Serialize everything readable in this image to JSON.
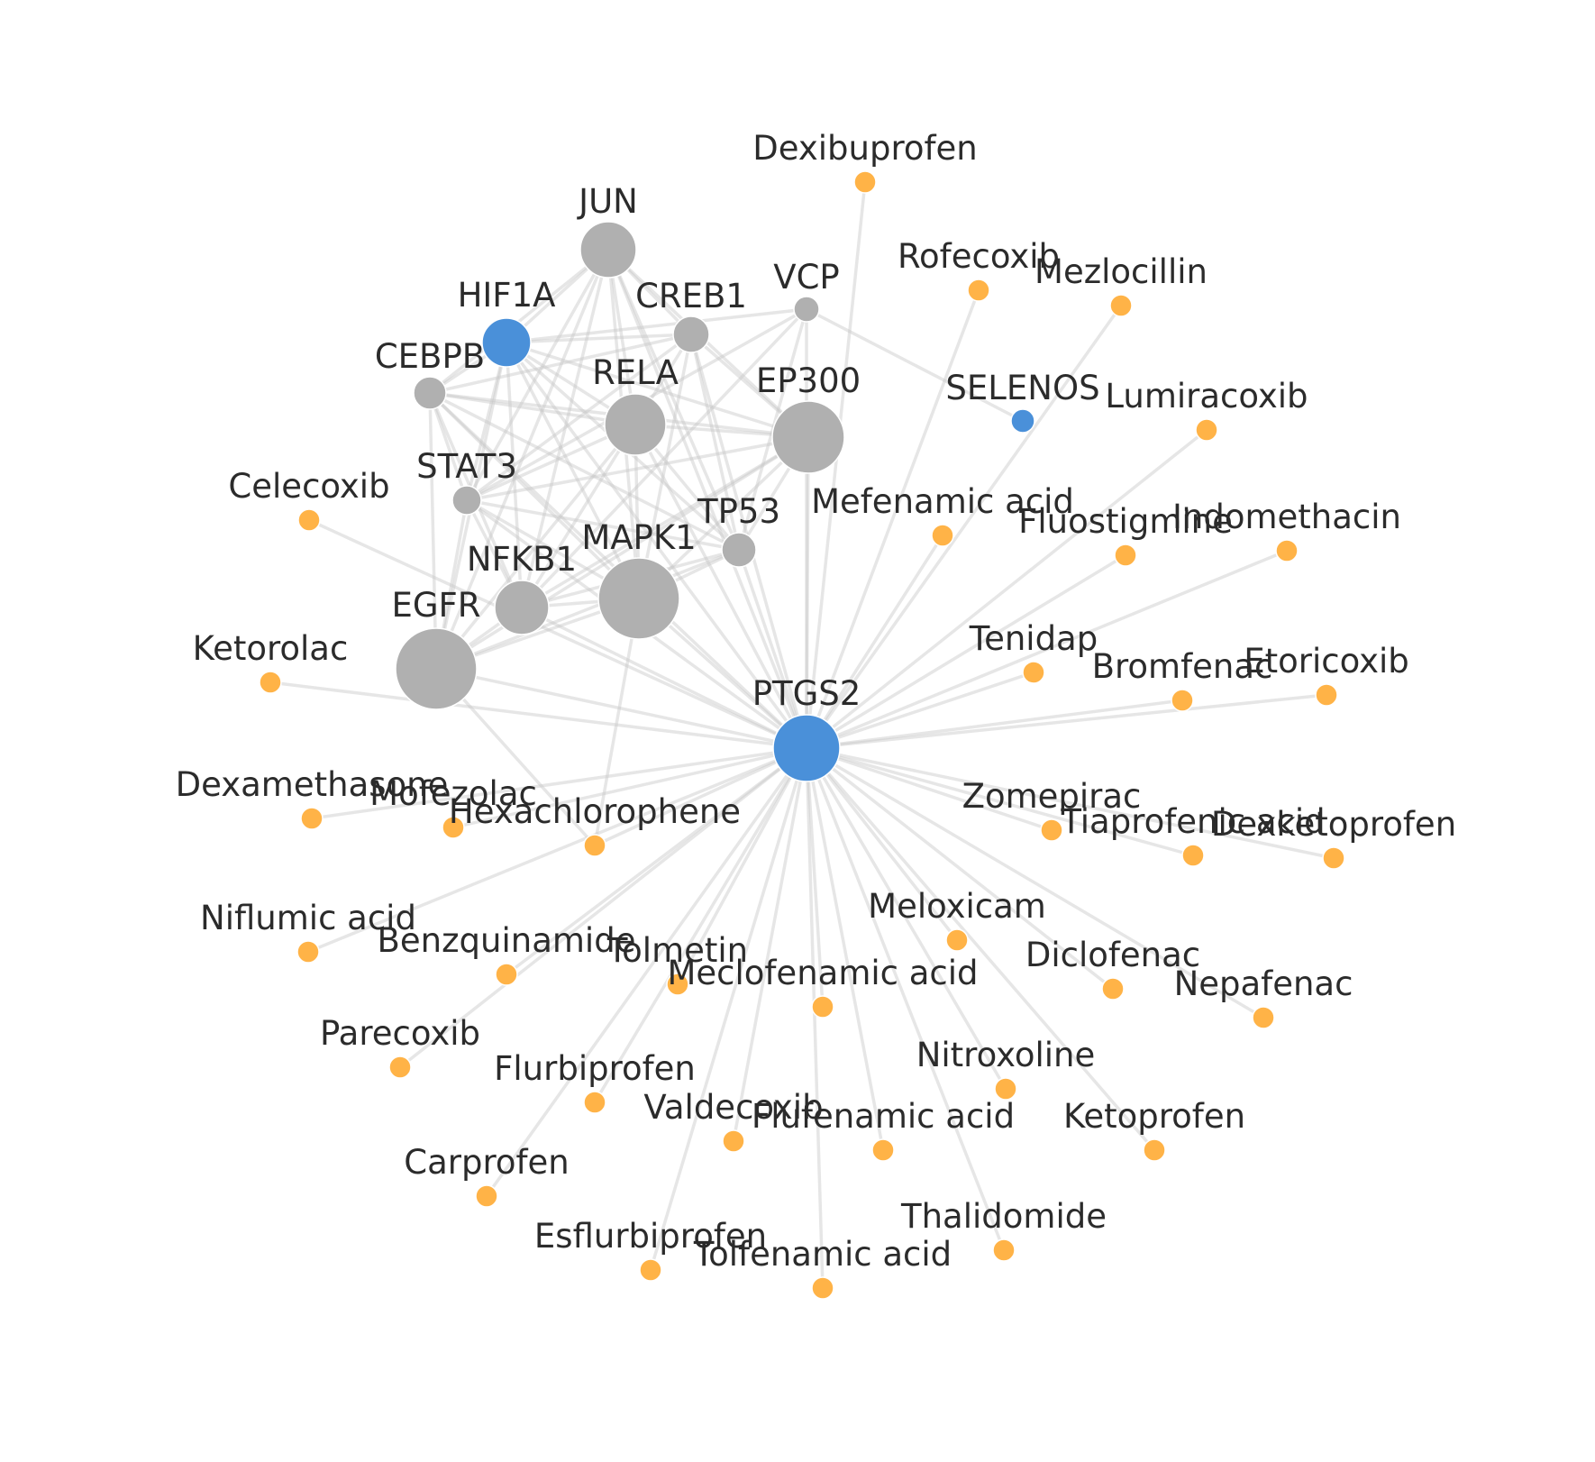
{
  "colors": {
    "background": "#ffffff",
    "edge": "#c8c8c8",
    "target": "#4a90d9",
    "gene": "#b0b0b0",
    "drug": "#ffb347",
    "label": "#2b2b2b"
  },
  "nodes": [
    {
      "id": "PTGS2",
      "label": "PTGS2",
      "type": "target"
    },
    {
      "id": "HIF1A",
      "label": "HIF1A",
      "type": "target"
    },
    {
      "id": "SELENOS",
      "label": "SELENOS",
      "type": "target"
    },
    {
      "id": "JUN",
      "label": "JUN",
      "type": "gene"
    },
    {
      "id": "CREB1",
      "label": "CREB1",
      "type": "gene"
    },
    {
      "id": "VCP",
      "label": "VCP",
      "type": "gene"
    },
    {
      "id": "CEBPB",
      "label": "CEBPB",
      "type": "gene"
    },
    {
      "id": "RELA",
      "label": "RELA",
      "type": "gene"
    },
    {
      "id": "EP300",
      "label": "EP300",
      "type": "gene"
    },
    {
      "id": "STAT3",
      "label": "STAT3",
      "type": "gene"
    },
    {
      "id": "TP53",
      "label": "TP53",
      "type": "gene"
    },
    {
      "id": "MAPK1",
      "label": "MAPK1",
      "type": "gene"
    },
    {
      "id": "NFKB1",
      "label": "NFKB1",
      "type": "gene"
    },
    {
      "id": "EGFR",
      "label": "EGFR",
      "type": "gene"
    },
    {
      "id": "Dexibuprofen",
      "label": "Dexibuprofen",
      "type": "drug"
    },
    {
      "id": "Rofecoxib",
      "label": "Rofecoxib",
      "type": "drug"
    },
    {
      "id": "Mezlocillin",
      "label": "Mezlocillin",
      "type": "drug"
    },
    {
      "id": "Lumiracoxib",
      "label": "Lumiracoxib",
      "type": "drug"
    },
    {
      "id": "Celecoxib",
      "label": "Celecoxib",
      "type": "drug"
    },
    {
      "id": "Mefenamic acid",
      "label": "Mefenamic acid",
      "type": "drug"
    },
    {
      "id": "Fluostigmine",
      "label": "Fluostigmine",
      "type": "drug"
    },
    {
      "id": "Indomethacin",
      "label": "Indomethacin",
      "type": "drug"
    },
    {
      "id": "Ketorolac",
      "label": "Ketorolac",
      "type": "drug"
    },
    {
      "id": "Tenidap",
      "label": "Tenidap",
      "type": "drug"
    },
    {
      "id": "Bromfenac",
      "label": "Bromfenac",
      "type": "drug"
    },
    {
      "id": "Etoricoxib",
      "label": "Etoricoxib",
      "type": "drug"
    },
    {
      "id": "Dexamethasone",
      "label": "Dexamethasone",
      "type": "drug"
    },
    {
      "id": "Mofezolac",
      "label": "Mofezolac",
      "type": "drug"
    },
    {
      "id": "Hexachlorophene",
      "label": "Hexachlorophene",
      "type": "drug"
    },
    {
      "id": "Zomepirac",
      "label": "Zomepirac",
      "type": "drug"
    },
    {
      "id": "Tiaprofenic acid",
      "label": "Tiaprofenic acid",
      "type": "drug"
    },
    {
      "id": "Dexketoprofen",
      "label": "Dexketoprofen",
      "type": "drug"
    },
    {
      "id": "Niflumic acid",
      "label": "Niflumic acid",
      "type": "drug"
    },
    {
      "id": "Meloxicam",
      "label": "Meloxicam",
      "type": "drug"
    },
    {
      "id": "Benzquinamide",
      "label": "Benzquinamide",
      "type": "drug"
    },
    {
      "id": "Tolmetin",
      "label": "Tolmetin",
      "type": "drug"
    },
    {
      "id": "Meclofenamic acid",
      "label": "Meclofenamic acid",
      "type": "drug"
    },
    {
      "id": "Diclofenac",
      "label": "Diclofenac",
      "type": "drug"
    },
    {
      "id": "Nepafenac",
      "label": "Nepafenac",
      "type": "drug"
    },
    {
      "id": "Parecoxib",
      "label": "Parecoxib",
      "type": "drug"
    },
    {
      "id": "Nitroxoline",
      "label": "Nitroxoline",
      "type": "drug"
    },
    {
      "id": "Flurbiprofen",
      "label": "Flurbiprofen",
      "type": "drug"
    },
    {
      "id": "Valdecoxib",
      "label": "Valdecoxib",
      "type": "drug"
    },
    {
      "id": "Flufenamic acid",
      "label": "Flufenamic acid",
      "type": "drug"
    },
    {
      "id": "Ketoprofen",
      "label": "Ketoprofen",
      "type": "drug"
    },
    {
      "id": "Carprofen",
      "label": "Carprofen",
      "type": "drug"
    },
    {
      "id": "Thalidomide",
      "label": "Thalidomide",
      "type": "drug"
    },
    {
      "id": "Esflurbiprofen",
      "label": "Esflurbiprofen",
      "type": "drug"
    },
    {
      "id": "Tolfenamic acid",
      "label": "Tolfenamic acid",
      "type": "drug"
    }
  ],
  "edges": [
    [
      "PTGS2",
      "Dexibuprofen"
    ],
    [
      "PTGS2",
      "Rofecoxib"
    ],
    [
      "PTGS2",
      "Mezlocillin"
    ],
    [
      "PTGS2",
      "Lumiracoxib"
    ],
    [
      "PTGS2",
      "Celecoxib"
    ],
    [
      "PTGS2",
      "Mefenamic acid"
    ],
    [
      "PTGS2",
      "Fluostigmine"
    ],
    [
      "PTGS2",
      "Indomethacin"
    ],
    [
      "PTGS2",
      "Ketorolac"
    ],
    [
      "PTGS2",
      "Tenidap"
    ],
    [
      "PTGS2",
      "Bromfenac"
    ],
    [
      "PTGS2",
      "Etoricoxib"
    ],
    [
      "PTGS2",
      "Dexamethasone"
    ],
    [
      "PTGS2",
      "Mofezolac"
    ],
    [
      "PTGS2",
      "Hexachlorophene"
    ],
    [
      "PTGS2",
      "Zomepirac"
    ],
    [
      "PTGS2",
      "Tiaprofenic acid"
    ],
    [
      "PTGS2",
      "Dexketoprofen"
    ],
    [
      "PTGS2",
      "Niflumic acid"
    ],
    [
      "PTGS2",
      "Meloxicam"
    ],
    [
      "PTGS2",
      "Benzquinamide"
    ],
    [
      "PTGS2",
      "Tolmetin"
    ],
    [
      "PTGS2",
      "Meclofenamic acid"
    ],
    [
      "PTGS2",
      "Diclofenac"
    ],
    [
      "PTGS2",
      "Nepafenac"
    ],
    [
      "PTGS2",
      "Parecoxib"
    ],
    [
      "PTGS2",
      "Nitroxoline"
    ],
    [
      "PTGS2",
      "Flurbiprofen"
    ],
    [
      "PTGS2",
      "Valdecoxib"
    ],
    [
      "PTGS2",
      "Flufenamic acid"
    ],
    [
      "PTGS2",
      "Ketoprofen"
    ],
    [
      "PTGS2",
      "Carprofen"
    ],
    [
      "PTGS2",
      "Thalidomide"
    ],
    [
      "PTGS2",
      "Esflurbiprofen"
    ],
    [
      "PTGS2",
      "Tolfenamic acid"
    ],
    [
      "PTGS2",
      "EGFR"
    ],
    [
      "PTGS2",
      "MAPK1"
    ],
    [
      "PTGS2",
      "NFKB1"
    ],
    [
      "PTGS2",
      "TP53"
    ],
    [
      "PTGS2",
      "EP300"
    ],
    [
      "PTGS2",
      "RELA"
    ],
    [
      "PTGS2",
      "STAT3"
    ],
    [
      "PTGS2",
      "VCP"
    ],
    [
      "PTGS2",
      "JUN"
    ],
    [
      "PTGS2",
      "CEBPB"
    ],
    [
      "PTGS2",
      "HIF1A"
    ],
    [
      "PTGS2",
      "CREB1"
    ],
    [
      "VCP",
      "SELENOS"
    ],
    [
      "VCP",
      "HIF1A"
    ],
    [
      "EGFR",
      "Hexachlorophene"
    ],
    [
      "MAPK1",
      "Hexachlorophene"
    ],
    [
      "JUN",
      "HIF1A"
    ],
    [
      "JUN",
      "CREB1"
    ],
    [
      "JUN",
      "CEBPB"
    ],
    [
      "JUN",
      "RELA"
    ],
    [
      "JUN",
      "EP300"
    ],
    [
      "JUN",
      "STAT3"
    ],
    [
      "JUN",
      "TP53"
    ],
    [
      "JUN",
      "MAPK1"
    ],
    [
      "JUN",
      "NFKB1"
    ],
    [
      "JUN",
      "EGFR"
    ],
    [
      "HIF1A",
      "CREB1"
    ],
    [
      "HIF1A",
      "CEBPB"
    ],
    [
      "HIF1A",
      "RELA"
    ],
    [
      "HIF1A",
      "EP300"
    ],
    [
      "HIF1A",
      "STAT3"
    ],
    [
      "HIF1A",
      "TP53"
    ],
    [
      "HIF1A",
      "MAPK1"
    ],
    [
      "HIF1A",
      "NFKB1"
    ],
    [
      "HIF1A",
      "EGFR"
    ],
    [
      "CREB1",
      "EP300"
    ],
    [
      "CREB1",
      "RELA"
    ],
    [
      "CREB1",
      "MAPK1"
    ],
    [
      "CREB1",
      "CEBPB"
    ],
    [
      "CREB1",
      "TP53"
    ],
    [
      "CREB1",
      "STAT3"
    ],
    [
      "CEBPB",
      "RELA"
    ],
    [
      "CEBPB",
      "EP300"
    ],
    [
      "CEBPB",
      "STAT3"
    ],
    [
      "CEBPB",
      "MAPK1"
    ],
    [
      "CEBPB",
      "NFKB1"
    ],
    [
      "CEBPB",
      "EGFR"
    ],
    [
      "CEBPB",
      "TP53"
    ],
    [
      "RELA",
      "EP300"
    ],
    [
      "RELA",
      "STAT3"
    ],
    [
      "RELA",
      "TP53"
    ],
    [
      "RELA",
      "MAPK1"
    ],
    [
      "RELA",
      "NFKB1"
    ],
    [
      "RELA",
      "EGFR"
    ],
    [
      "EP300",
      "STAT3"
    ],
    [
      "EP300",
      "TP53"
    ],
    [
      "EP300",
      "MAPK1"
    ],
    [
      "EP300",
      "NFKB1"
    ],
    [
      "EP300",
      "EGFR"
    ],
    [
      "STAT3",
      "TP53"
    ],
    [
      "STAT3",
      "MAPK1"
    ],
    [
      "STAT3",
      "NFKB1"
    ],
    [
      "STAT3",
      "EGFR"
    ],
    [
      "TP53",
      "MAPK1"
    ],
    [
      "TP53",
      "NFKB1"
    ],
    [
      "TP53",
      "EGFR"
    ],
    [
      "MAPK1",
      "NFKB1"
    ],
    [
      "MAPK1",
      "EGFR"
    ],
    [
      "NFKB1",
      "EGFR"
    ],
    [
      "VCP",
      "STAT3"
    ],
    [
      "VCP",
      "NFKB1"
    ],
    [
      "VCP",
      "TP53"
    ]
  ]
}
